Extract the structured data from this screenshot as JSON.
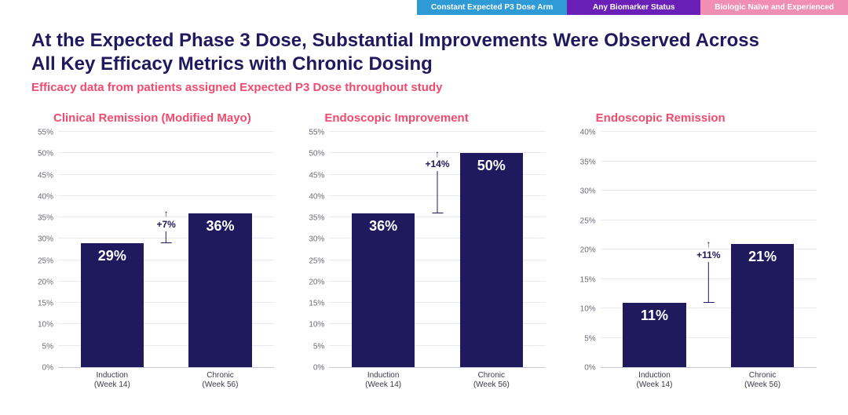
{
  "colors": {
    "title": "#1f1a5e",
    "accent": "#f24a6e",
    "bar": "#1f1a5e",
    "tab1_bg": "#2e9bd6",
    "tab2_bg": "#6a20b8",
    "tab3_bg": "#f08fb3",
    "ytick": "#6b6b7a",
    "grid": "#e9e9ef",
    "baseline": "#c9c9d3",
    "xlabel": "#3a3a4a",
    "background": "#ffffff"
  },
  "tabs": [
    {
      "label": "Constant Expected P3 Dose Arm"
    },
    {
      "label": "Any Biomarker Status"
    },
    {
      "label": "Biologic Naïve and Experienced"
    }
  ],
  "title": "At the Expected Phase 3 Dose, Substantial Improvements Were Observed Across All Key Efficacy Metrics with Chronic Dosing",
  "subtitle": "Efficacy data from patients assigned Expected P3 Dose throughout study",
  "xcategories": [
    {
      "line1": "Induction",
      "line2": "(Week 14)"
    },
    {
      "line1": "Chronic",
      "line2": "(Week 56)"
    }
  ],
  "charts": [
    {
      "title": "Clinical Remission (Modified Mayo)",
      "ymax": 55,
      "ystep": 5,
      "values": [
        29,
        36
      ],
      "value_labels": [
        "29%",
        "36%"
      ],
      "delta": "+7%"
    },
    {
      "title": "Endoscopic Improvement",
      "ymax": 55,
      "ystep": 5,
      "values": [
        36,
        50
      ],
      "value_labels": [
        "36%",
        "50%"
      ],
      "delta": "+14%"
    },
    {
      "title": "Endoscopic Remission",
      "ymax": 40,
      "ystep": 5,
      "values": [
        11,
        21
      ],
      "value_labels": [
        "11%",
        "21%"
      ],
      "delta": "+11%"
    }
  ]
}
